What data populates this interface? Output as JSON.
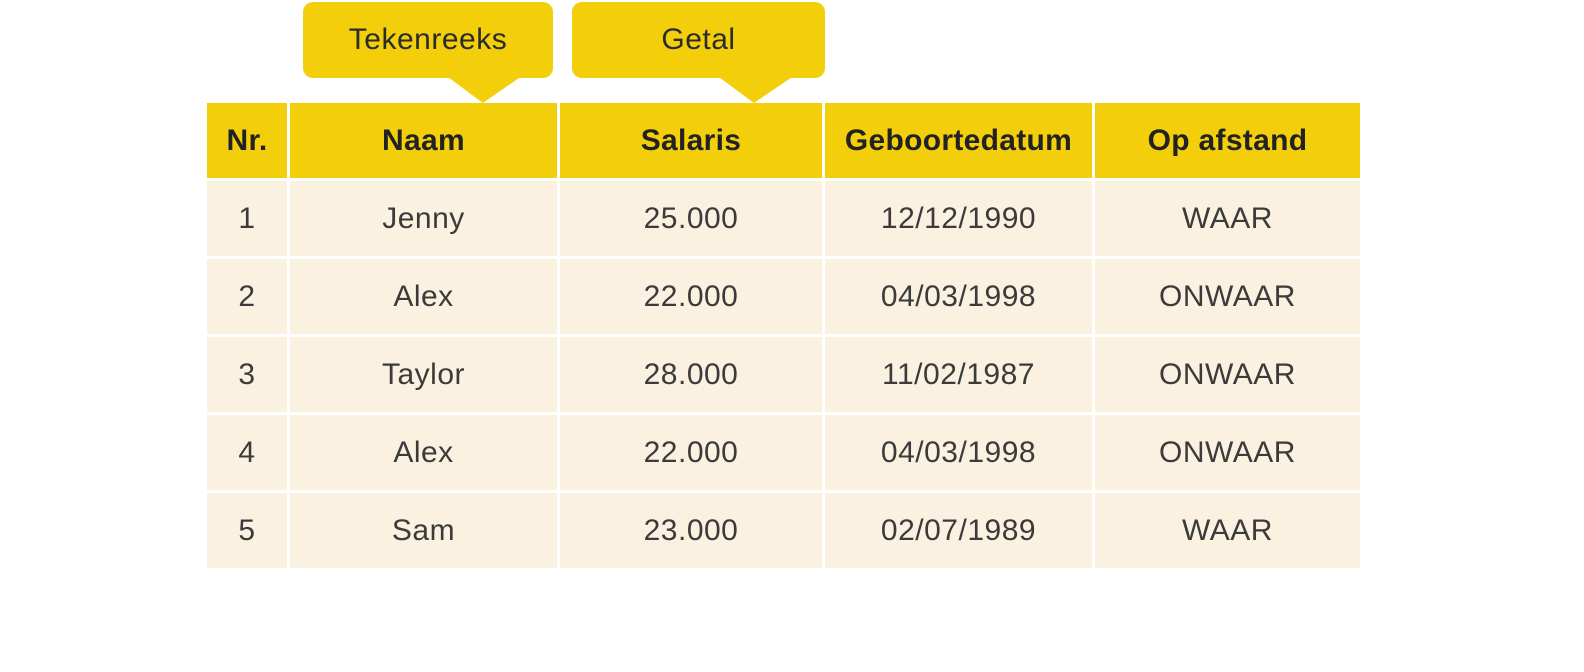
{
  "callouts": [
    {
      "label": "Tekenreeks",
      "points_to_column": "Naam"
    },
    {
      "label": "Getal",
      "points_to_column": "Salaris"
    }
  ],
  "table": {
    "headers": [
      "Nr.",
      "Naam",
      "Salaris",
      "Geboortedatum",
      "Op afstand"
    ],
    "rows": [
      [
        "1",
        "Jenny",
        "25.000",
        "12/12/1990",
        "WAAR"
      ],
      [
        "2",
        "Alex",
        "22.000",
        "04/03/1998",
        "ONWAAR"
      ],
      [
        "3",
        "Taylor",
        "28.000",
        "11/02/1987",
        "ONWAAR"
      ],
      [
        "4",
        "Alex",
        "22.000",
        "04/03/1998",
        "ONWAAR"
      ],
      [
        "5",
        "Sam",
        "23.000",
        "02/07/1989",
        "WAAR"
      ]
    ]
  },
  "chart_data": {
    "type": "table",
    "title": "",
    "columns": [
      "Nr.",
      "Naam",
      "Salaris",
      "Geboortedatum",
      "Op afstand"
    ],
    "rows": [
      [
        "1",
        "Jenny",
        "25.000",
        "12/12/1990",
        "WAAR"
      ],
      [
        "2",
        "Alex",
        "22.000",
        "04/03/1998",
        "ONWAAR"
      ],
      [
        "3",
        "Taylor",
        "28.000",
        "11/02/1987",
        "ONWAAR"
      ],
      [
        "4",
        "Alex",
        "22.000",
        "04/03/1998",
        "ONWAAR"
      ],
      [
        "5",
        "Sam",
        "23.000",
        "02/07/1989",
        "WAAR"
      ]
    ],
    "annotations": [
      {
        "label": "Tekenreeks",
        "points_to": "Naam"
      },
      {
        "label": "Getal",
        "points_to": "Salaris"
      }
    ],
    "layout_hints": {
      "header_fill": "#F2CF0A",
      "body_fill": "#FAF1E0",
      "grid": "white 3px gaps between cells",
      "text_align": "center"
    }
  },
  "colors": {
    "yellow": "#F2CF0A",
    "cream": "#FAF1E0",
    "header_text": "#222222",
    "body_text": "#3B3B3B",
    "background": "#FFFFFF"
  }
}
